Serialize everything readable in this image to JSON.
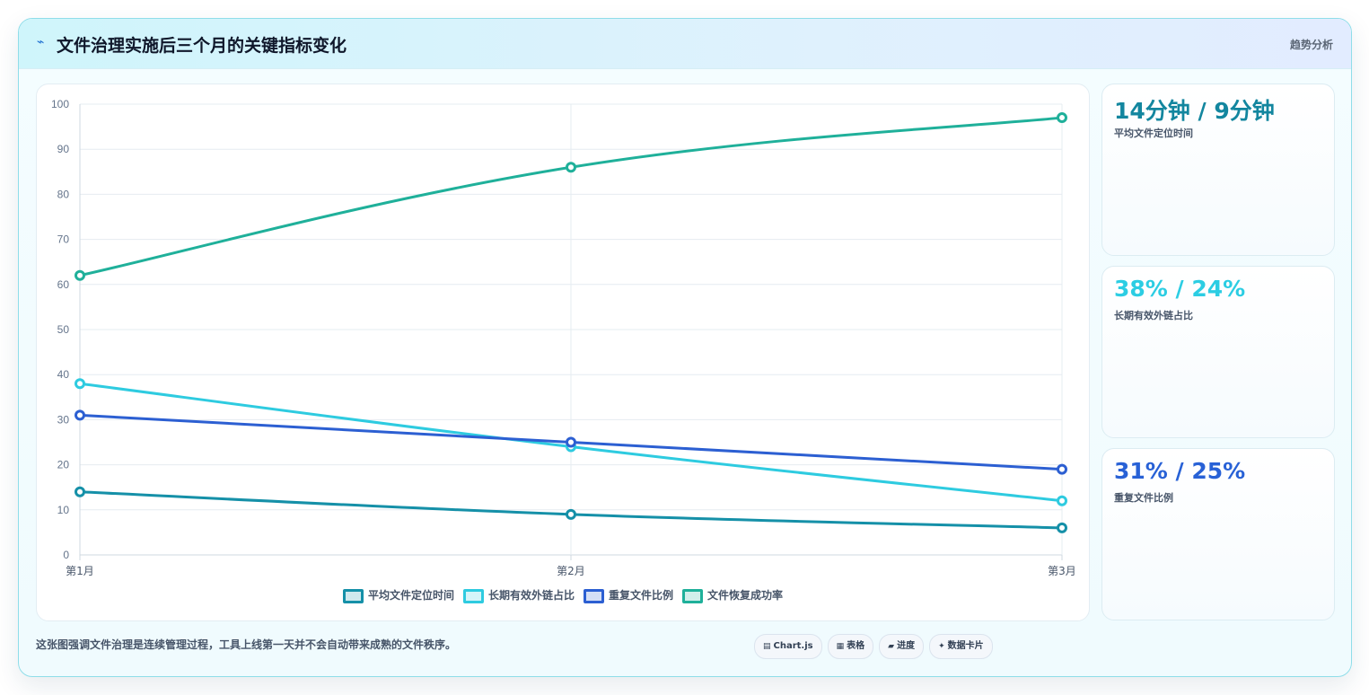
{
  "header": {
    "title": "文件治理实施后三个月的关键指标变化",
    "tag": "趋势分析",
    "icon": "lightning-icon"
  },
  "chart_data": {
    "type": "line",
    "categories": [
      "第1月",
      "第2月",
      "第3月"
    ],
    "ylim": [
      0,
      100
    ],
    "yticks": [
      0,
      10,
      20,
      30,
      40,
      50,
      60,
      70,
      80,
      90,
      100
    ],
    "grid": true,
    "legend_position": "bottom",
    "series": [
      {
        "name": "平均文件定位时间",
        "values": [
          14,
          9,
          6
        ],
        "color": "#1590a8"
      },
      {
        "name": "长期有效外链占比",
        "values": [
          38,
          24,
          12
        ],
        "color": "#2ecbe0"
      },
      {
        "name": "重复文件比例",
        "values": [
          31,
          25,
          19
        ],
        "color": "#2c5fd2"
      },
      {
        "name": "文件恢复成功率",
        "values": [
          62,
          86,
          97
        ],
        "color": "#1fb09a"
      }
    ]
  },
  "kpis": [
    {
      "value": "14分钟 / 9分钟",
      "label": "平均文件定位时间",
      "color": "#13869f"
    },
    {
      "value": "38% / 24%",
      "label": "长期有效外链占比",
      "color": "#2ccde3"
    },
    {
      "value": "31% / 25%",
      "label": "重复文件比例",
      "color": "#2861d6"
    }
  ],
  "footer": {
    "note": "这张图强调文件治理是连续管理过程，工具上线第一天并不会自动带来成熟的文件秩序。",
    "chips": [
      {
        "icon": "chart-icon",
        "glyph": "▤",
        "label": "Chart.js"
      },
      {
        "icon": "table-icon",
        "glyph": "▦",
        "label": "表格"
      },
      {
        "icon": "progress-icon",
        "glyph": "▰",
        "label": "进度"
      },
      {
        "icon": "data-card-icon",
        "glyph": "✦",
        "label": "数据卡片"
      }
    ]
  }
}
